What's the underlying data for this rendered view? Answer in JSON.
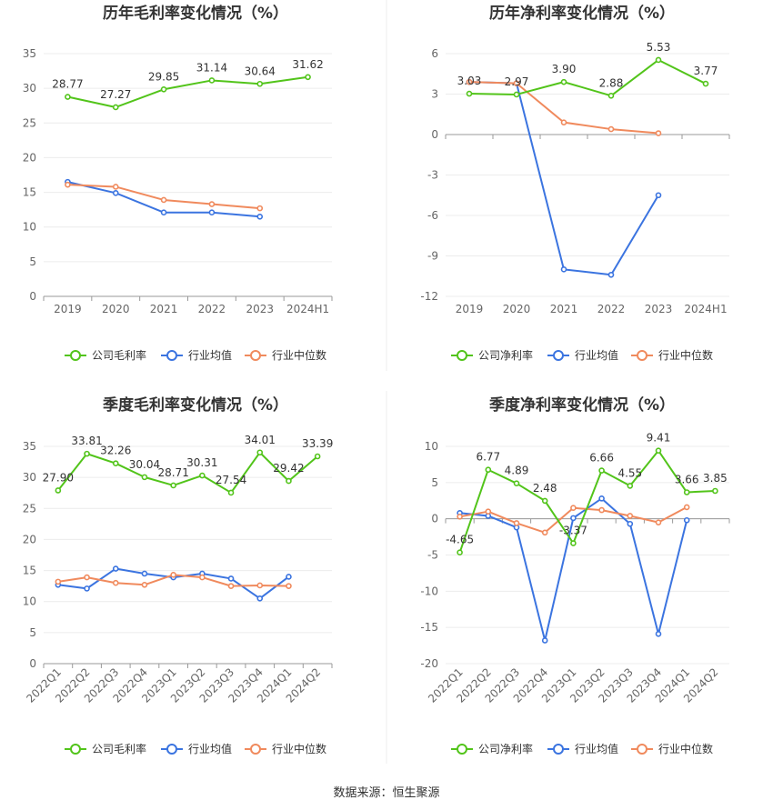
{
  "source": "数据来源：恒生聚源",
  "legend_labels": [
    "行业均值",
    "行业中位数"
  ],
  "colors": {
    "company": "#52c41a",
    "mean": "#3b74e0",
    "median": "#f08a5d"
  },
  "chart_data": [
    {
      "type": "line",
      "title": "历年毛利率变化情况（%）",
      "categories": [
        "2019",
        "2020",
        "2021",
        "2022",
        "2023",
        "2024H1"
      ],
      "y_ticks": [
        0,
        5,
        10,
        15,
        20,
        25,
        30,
        35
      ],
      "ylim": [
        0,
        35
      ],
      "rotate_x": false,
      "series": [
        {
          "name": "公司毛利率",
          "key": "company",
          "labeled": true,
          "labels": [
            "28.77",
            "27.27",
            "29.85",
            "31.14",
            "30.64",
            "31.62"
          ],
          "values": [
            28.77,
            27.27,
            29.85,
            31.14,
            30.64,
            31.62
          ]
        },
        {
          "name": "行业均值",
          "key": "mean",
          "labeled": false,
          "values": [
            16.5,
            14.9,
            12.1,
            12.1,
            11.5,
            null
          ]
        },
        {
          "name": "行业中位数",
          "key": "median",
          "labeled": false,
          "values": [
            16.1,
            15.8,
            13.9,
            13.3,
            12.7,
            null
          ]
        }
      ]
    },
    {
      "type": "line",
      "title": "历年净利率变化情况（%）",
      "categories": [
        "2019",
        "2020",
        "2021",
        "2022",
        "2023",
        "2024H1"
      ],
      "y_ticks": [
        -12,
        -9,
        -6,
        -3,
        0,
        3,
        6
      ],
      "ylim": [
        -12,
        6
      ],
      "rotate_x": false,
      "series": [
        {
          "name": "公司净利率",
          "key": "company",
          "labeled": true,
          "labels": [
            "3.03",
            "2.97",
            "3.90",
            "2.88",
            "5.53",
            "3.77"
          ],
          "values": [
            3.03,
            2.97,
            3.9,
            2.88,
            5.53,
            3.77
          ]
        },
        {
          "name": "行业均值",
          "key": "mean",
          "labeled": false,
          "values": [
            3.9,
            3.8,
            -10.0,
            -10.4,
            -4.5,
            null
          ]
        },
        {
          "name": "行业中位数",
          "key": "median",
          "labeled": false,
          "values": [
            3.9,
            3.8,
            0.9,
            0.4,
            0.1,
            null
          ]
        }
      ]
    },
    {
      "type": "line",
      "title": "季度毛利率变化情况（%）",
      "categories": [
        "2022Q1",
        "2022Q2",
        "2022Q3",
        "2022Q4",
        "2023Q1",
        "2023Q2",
        "2023Q3",
        "2023Q4",
        "2024Q1",
        "2024Q2"
      ],
      "y_ticks": [
        0,
        5,
        10,
        15,
        20,
        25,
        30,
        35
      ],
      "ylim": [
        0,
        35
      ],
      "rotate_x": true,
      "series": [
        {
          "name": "公司毛利率",
          "key": "company",
          "labeled": true,
          "labels": [
            "27.90",
            "33.81",
            "32.26",
            "30.04",
            "28.71",
            "30.31",
            "27.54",
            "34.01",
            "29.42",
            "33.39"
          ],
          "values": [
            27.9,
            33.81,
            32.26,
            30.04,
            28.71,
            30.31,
            27.54,
            34.01,
            29.42,
            33.39
          ]
        },
        {
          "name": "行业均值",
          "key": "mean",
          "labeled": false,
          "values": [
            12.7,
            12.1,
            15.3,
            14.5,
            13.9,
            14.5,
            13.7,
            10.5,
            14.0,
            null
          ]
        },
        {
          "name": "行业中位数",
          "key": "median",
          "labeled": false,
          "values": [
            13.2,
            13.9,
            13.0,
            12.7,
            14.3,
            13.9,
            12.5,
            12.6,
            12.5,
            null
          ]
        }
      ]
    },
    {
      "type": "line",
      "title": "季度净利率变化情况（%）",
      "categories": [
        "2022Q1",
        "2022Q2",
        "2022Q3",
        "2022Q4",
        "2023Q1",
        "2023Q2",
        "2023Q3",
        "2023Q4",
        "2024Q1",
        "2024Q2"
      ],
      "y_ticks": [
        -20,
        -15,
        -10,
        -5,
        0,
        5,
        10
      ],
      "ylim": [
        -20,
        10
      ],
      "rotate_x": true,
      "series": [
        {
          "name": "公司净利率",
          "key": "company",
          "labeled": true,
          "labels": [
            "-4.65",
            "6.77",
            "4.89",
            "2.48",
            "-3.37",
            "6.66",
            "4.55",
            "9.41",
            "3.66",
            "3.85"
          ],
          "values": [
            -4.65,
            6.77,
            4.89,
            2.48,
            -3.37,
            6.66,
            4.55,
            9.41,
            3.66,
            3.85
          ]
        },
        {
          "name": "行业均值",
          "key": "mean",
          "labeled": false,
          "values": [
            0.8,
            0.4,
            -1.2,
            -16.8,
            0.1,
            2.8,
            -0.7,
            -15.9,
            -0.2,
            null
          ]
        },
        {
          "name": "行业中位数",
          "key": "median",
          "labeled": false,
          "values": [
            0.3,
            1.0,
            -0.6,
            -1.9,
            1.5,
            1.2,
            0.4,
            -0.5,
            1.6,
            null
          ]
        }
      ]
    }
  ]
}
